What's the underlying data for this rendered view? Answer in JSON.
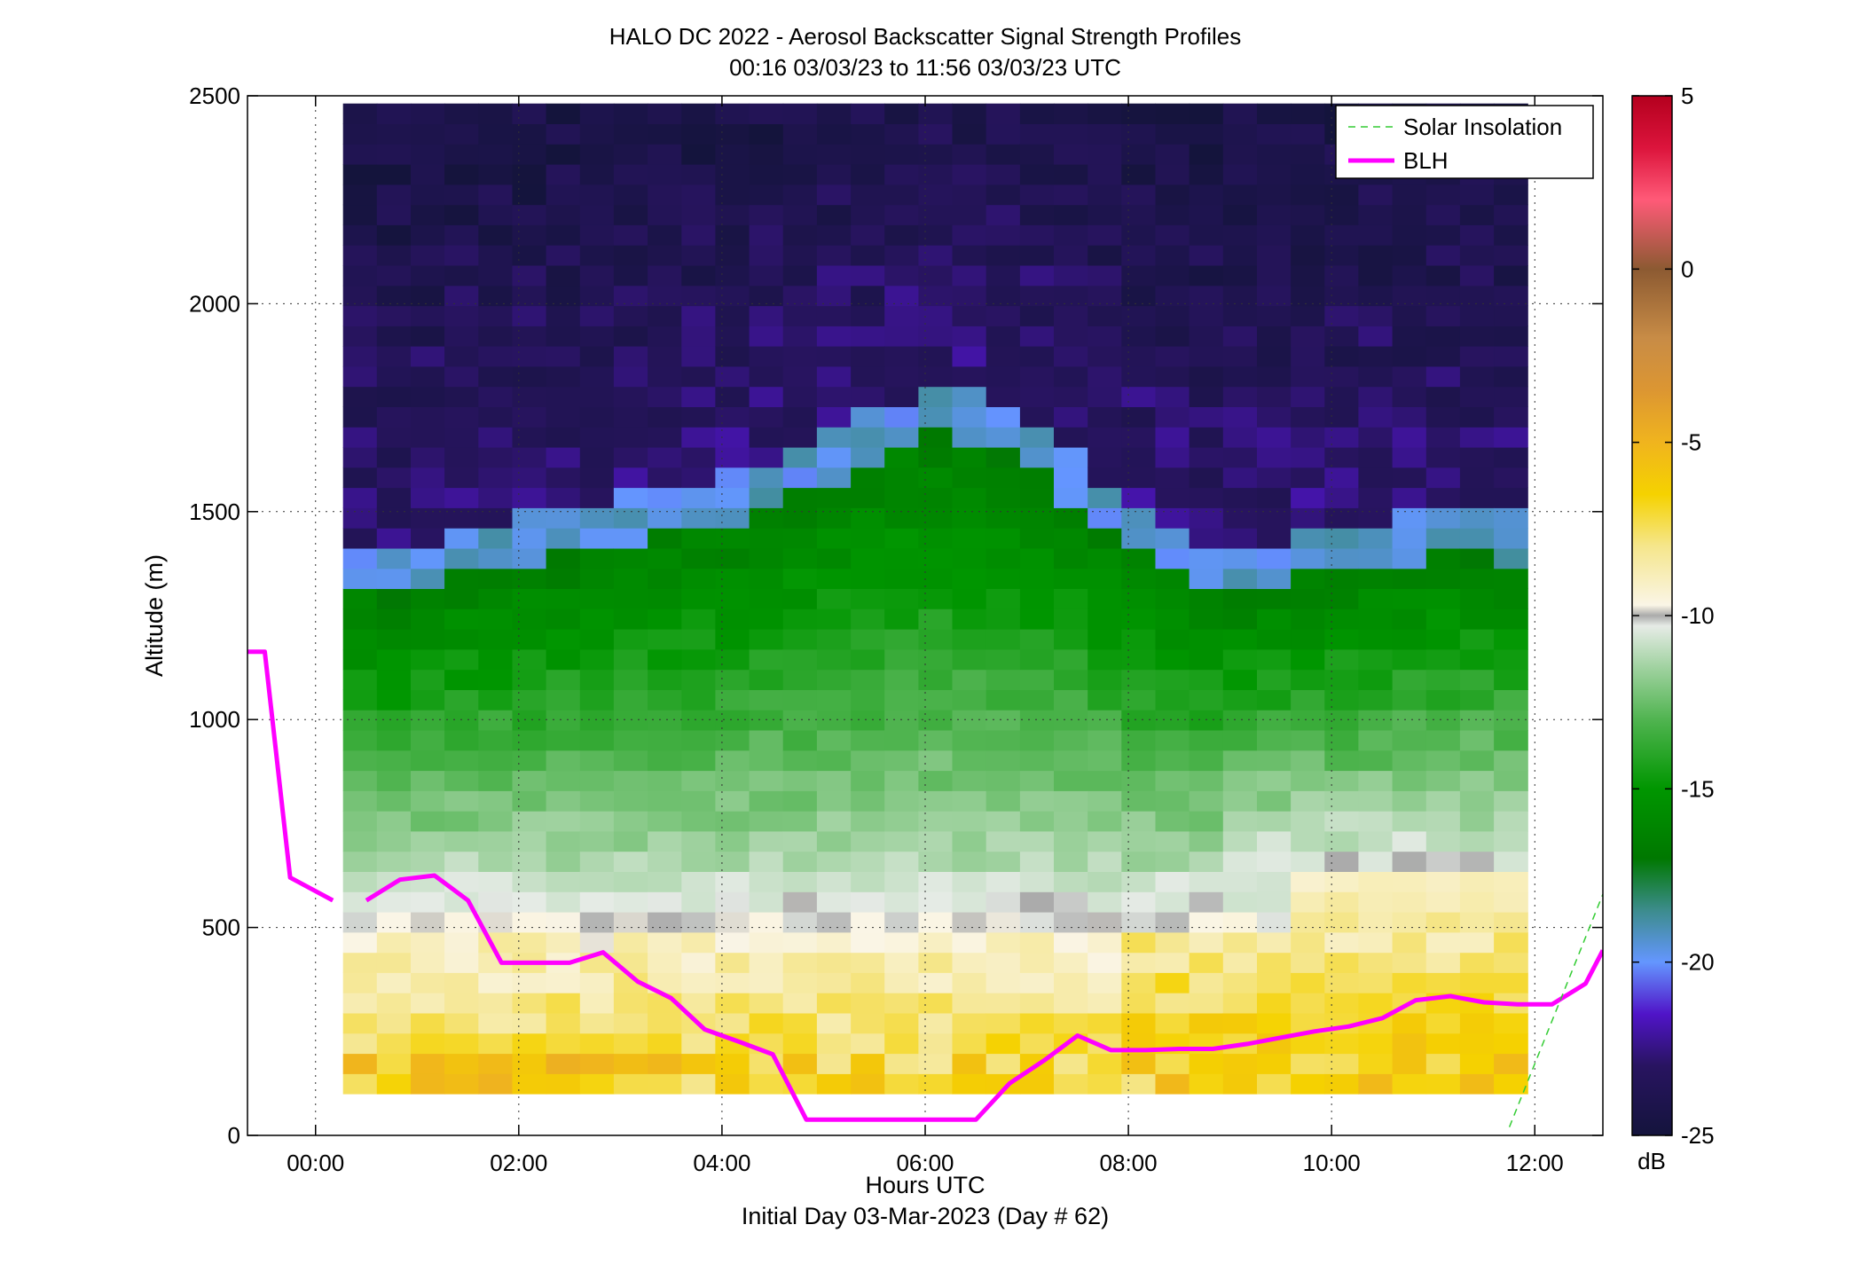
{
  "figure": {
    "title_line1": "HALO DC 2022 - Aerosol Backscatter Signal Strength Profiles",
    "title_line2": "00:16 03/03/23 to 11:56 03/03/23  UTC",
    "xlabel": "Hours UTC",
    "xlabel2": "Initial Day 03-Mar-2023 (Day # 62)",
    "ylabel": "Altitude (m)",
    "colorbar_unit": "dB"
  },
  "legend": {
    "placement": "top-right",
    "items": [
      {
        "label": "Solar Insolation",
        "color": "#33cc33",
        "style": "dashed"
      },
      {
        "label": "BLH",
        "color": "#ff00ff",
        "style": "solid"
      }
    ]
  },
  "chart_data": {
    "type": "heatmap",
    "title": "HALO DC 2022 - Aerosol Backscatter Signal Strength Profiles",
    "subtitle": "00:16 03/03/23 to 11:56 03/03/23  UTC",
    "xlabel": "Hours UTC",
    "ylabel": "Altitude (m)",
    "xlim_hours": [
      -0.67,
      12.67
    ],
    "ylim": [
      0,
      2500
    ],
    "grid": true,
    "x_ticks": [
      {
        "value": 0,
        "label": "00:00"
      },
      {
        "value": 2,
        "label": "02:00"
      },
      {
        "value": 4,
        "label": "04:00"
      },
      {
        "value": 6,
        "label": "06:00"
      },
      {
        "value": 8,
        "label": "08:00"
      },
      {
        "value": 10,
        "label": "10:00"
      },
      {
        "value": 12,
        "label": "12:00"
      }
    ],
    "y_ticks": [
      0,
      500,
      1000,
      1500,
      2000,
      2500
    ],
    "colorbar": {
      "min": -25,
      "max": 5,
      "unit": "dB",
      "ticks": [
        5,
        0,
        -5,
        -10,
        -15,
        -20,
        -25
      ]
    },
    "colormap_stops": [
      {
        "v": -25,
        "c": "#14143c"
      },
      {
        "v": -23,
        "c": "#281460"
      },
      {
        "v": -21.5,
        "c": "#5014c8"
      },
      {
        "v": -20,
        "c": "#6496ff"
      },
      {
        "v": -18.5,
        "c": "#3c8c8c"
      },
      {
        "v": -17,
        "c": "#007800"
      },
      {
        "v": -15,
        "c": "#009600"
      },
      {
        "v": -13,
        "c": "#50b450"
      },
      {
        "v": -11.5,
        "c": "#a0d2a0"
      },
      {
        "v": -10.3,
        "c": "#e6ebe6"
      },
      {
        "v": -10,
        "c": "#aaaaaa"
      },
      {
        "v": -9.7,
        "c": "#faf5e6"
      },
      {
        "v": -8,
        "c": "#f5e68c"
      },
      {
        "v": -6.5,
        "c": "#f5d200"
      },
      {
        "v": -5,
        "c": "#f0b41e"
      },
      {
        "v": -3.5,
        "c": "#dc9632"
      },
      {
        "v": -2,
        "c": "#c88c46"
      },
      {
        "v": 0,
        "c": "#8c5a32"
      },
      {
        "v": 2,
        "c": "#ff5a78"
      },
      {
        "v": 3.5,
        "c": "#dc143c"
      },
      {
        "v": 5,
        "c": "#b4001e"
      }
    ],
    "heatmap": {
      "time_start_hours": 0.27,
      "time_end_hours": 11.93,
      "columns": 35,
      "altitude_start_m": 100,
      "bin_height_m": 48.6,
      "rows": 49,
      "value_unit": "dB"
    },
    "series": [
      {
        "name": "BLH",
        "color": "#ff00ff",
        "segments": [
          [
            [
              -0.67,
              1163
            ],
            [
              -0.5,
              1163
            ],
            [
              -0.25,
              620
            ],
            [
              0.17,
              565
            ]
          ],
          [
            [
              0.5,
              565
            ],
            [
              0.83,
              615
            ],
            [
              1.17,
              625
            ],
            [
              1.5,
              565
            ],
            [
              1.83,
              415
            ],
            [
              2.17,
              415
            ],
            [
              2.5,
              415
            ],
            [
              2.83,
              440
            ],
            [
              3.17,
              370
            ],
            [
              3.5,
              330
            ],
            [
              3.83,
              255
            ],
            [
              4.17,
              225
            ],
            [
              4.5,
              195
            ],
            [
              4.83,
              38
            ],
            [
              5.17,
              38
            ],
            [
              5.5,
              38
            ],
            [
              5.83,
              38
            ],
            [
              6.17,
              38
            ],
            [
              6.5,
              38
            ],
            [
              6.83,
              125
            ],
            [
              7.17,
              180
            ],
            [
              7.5,
              240
            ],
            [
              7.83,
              205
            ],
            [
              8.17,
              205
            ],
            [
              8.5,
              208
            ],
            [
              8.83,
              208
            ],
            [
              9.17,
              220
            ],
            [
              9.5,
              235
            ],
            [
              9.83,
              250
            ],
            [
              10.17,
              262
            ],
            [
              10.5,
              282
            ],
            [
              10.83,
              325
            ],
            [
              11.17,
              335
            ],
            [
              11.5,
              320
            ],
            [
              11.83,
              315
            ],
            [
              12.17,
              315
            ],
            [
              12.5,
              365
            ],
            [
              12.67,
              445
            ]
          ]
        ]
      },
      {
        "name": "Solar Insolation",
        "color": "#33cc33",
        "style": "dashed",
        "points": [
          [
            11.75,
            20
          ],
          [
            12.67,
            580
          ]
        ]
      }
    ]
  }
}
